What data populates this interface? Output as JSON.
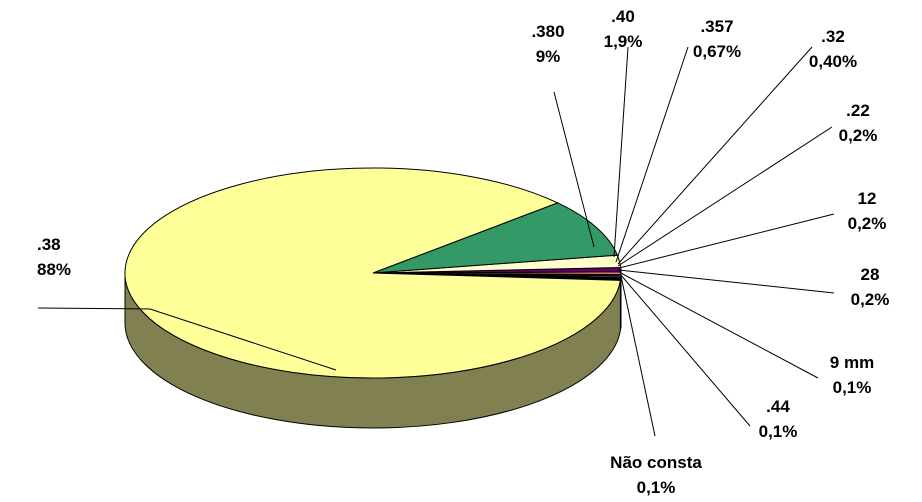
{
  "chart_data": {
    "type": "pie",
    "style": "3d",
    "slices": [
      {
        "name": ".38",
        "value": 88,
        "label": "88%",
        "color": "#FFFF99",
        "side_color": "#808050"
      },
      {
        "name": ".380",
        "value": 9,
        "label": "9%",
        "color": "#339966",
        "side_color": "#1F5C3D"
      },
      {
        "name": ".40",
        "value": 1.9,
        "label": "1,9%",
        "color": "#FFFFCC",
        "side_color": "#80805F"
      },
      {
        "name": ".357",
        "value": 0.67,
        "label": "0,67%",
        "color": "#660066",
        "side_color": "#330033"
      },
      {
        "name": ".32",
        "value": 0.4,
        "label": "0,40%",
        "color": "#FF8080",
        "side_color": "#804040"
      },
      {
        "name": ".22",
        "value": 0.2,
        "label": "0,2%",
        "color": "#0066CC",
        "side_color": "#003366"
      },
      {
        "name": "12",
        "value": 0.2,
        "label": "0,2%",
        "color": "#CCCCFF",
        "side_color": "#666680"
      },
      {
        "name": "28",
        "value": 0.2,
        "label": "0,2%",
        "color": "#000080",
        "side_color": "#000040"
      },
      {
        "name": "9 mm",
        "value": 0.1,
        "label": "0,1%",
        "color": "#FF00FF",
        "side_color": "#800080"
      },
      {
        "name": ".44",
        "value": 0.1,
        "label": "0,1%",
        "color": "#FFFF00",
        "side_color": "#808000"
      },
      {
        "name": "Não consta",
        "value": 0.1,
        "label": "0,1%",
        "color": "#00FFFF",
        "side_color": "#008080"
      }
    ]
  }
}
